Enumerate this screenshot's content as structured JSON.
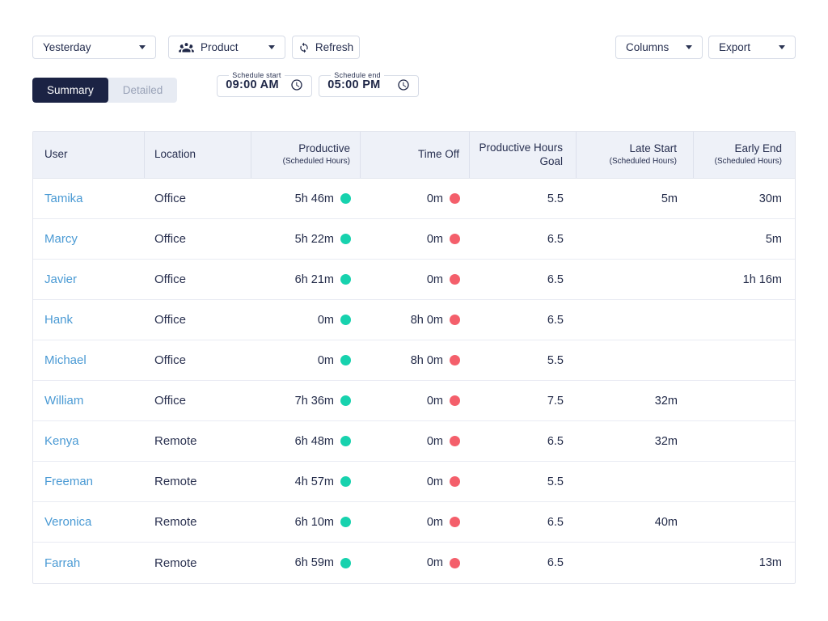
{
  "colors": {
    "navy_text": "#252e4f",
    "link_blue": "#4a9ad4",
    "productive_dot": "#17d2ae",
    "time_off_dot": "#f45f6b",
    "header_bg": "#eef1f8",
    "active_toggle_bg": "#1b2344",
    "inactive_toggle_bg": "#e7ebf3"
  },
  "toolbar": {
    "period": {
      "value": "Yesterday",
      "icon": "chevron-down-icon"
    },
    "team": {
      "value": "Product",
      "icon": "people-icon"
    },
    "refresh": {
      "label": "Refresh",
      "icon": "refresh-icon"
    },
    "columns": {
      "label": "Columns",
      "icon": "chevron-down-icon"
    },
    "export": {
      "label": "Export",
      "icon": "chevron-down-icon"
    }
  },
  "view_toggle": {
    "summary_label": "Summary",
    "detailed_label": "Detailed",
    "active": "Summary"
  },
  "schedule": {
    "start": {
      "label": "Schedule start",
      "value": "09:00 AM",
      "icon": "clock-icon"
    },
    "end": {
      "label": "Schedule end",
      "value": "05:00 PM",
      "icon": "clock-icon"
    }
  },
  "table": {
    "headers": [
      {
        "label": "User",
        "sub": "",
        "align": "left"
      },
      {
        "label": "Location",
        "sub": "",
        "align": "left"
      },
      {
        "label": "Productive",
        "sub": "(Scheduled Hours)",
        "align": "right"
      },
      {
        "label": "Time Off",
        "sub": "",
        "align": "right"
      },
      {
        "label": "Productive Hours Goal",
        "sub": "",
        "align": "right"
      },
      {
        "label": "Late Start",
        "sub": "(Scheduled Hours)",
        "align": "right"
      },
      {
        "label": "Early End",
        "sub": "(Scheduled Hours)",
        "align": "right"
      }
    ],
    "rows": [
      {
        "user": "Tamika",
        "location": "Office",
        "productive": "5h 46m",
        "time_off": "0m",
        "goal": "5.5",
        "late_start": "5m",
        "early_end": "30m"
      },
      {
        "user": "Marcy",
        "location": "Office",
        "productive": "5h 22m",
        "time_off": "0m",
        "goal": "6.5",
        "late_start": "",
        "early_end": "5m"
      },
      {
        "user": "Javier",
        "location": "Office",
        "productive": "6h 21m",
        "time_off": "0m",
        "goal": "6.5",
        "late_start": "",
        "early_end": "1h 16m"
      },
      {
        "user": "Hank",
        "location": "Office",
        "productive": "0m",
        "time_off": "8h 0m",
        "goal": "6.5",
        "late_start": "",
        "early_end": ""
      },
      {
        "user": "Michael",
        "location": "Office",
        "productive": "0m",
        "time_off": "8h 0m",
        "goal": "5.5",
        "late_start": "",
        "early_end": ""
      },
      {
        "user": "William",
        "location": "Office",
        "productive": "7h 36m",
        "time_off": "0m",
        "goal": "7.5",
        "late_start": "32m",
        "early_end": ""
      },
      {
        "user": "Kenya",
        "location": "Remote",
        "productive": "6h 48m",
        "time_off": "0m",
        "goal": "6.5",
        "late_start": "32m",
        "early_end": ""
      },
      {
        "user": "Freeman",
        "location": "Remote",
        "productive": "4h 57m",
        "time_off": "0m",
        "goal": "5.5",
        "late_start": "",
        "early_end": ""
      },
      {
        "user": "Veronica",
        "location": "Remote",
        "productive": "6h 10m",
        "time_off": "0m",
        "goal": "6.5",
        "late_start": "40m",
        "early_end": ""
      },
      {
        "user": "Farrah",
        "location": "Remote",
        "productive": "6h 59m",
        "time_off": "0m",
        "goal": "6.5",
        "late_start": "",
        "early_end": "13m"
      }
    ]
  }
}
